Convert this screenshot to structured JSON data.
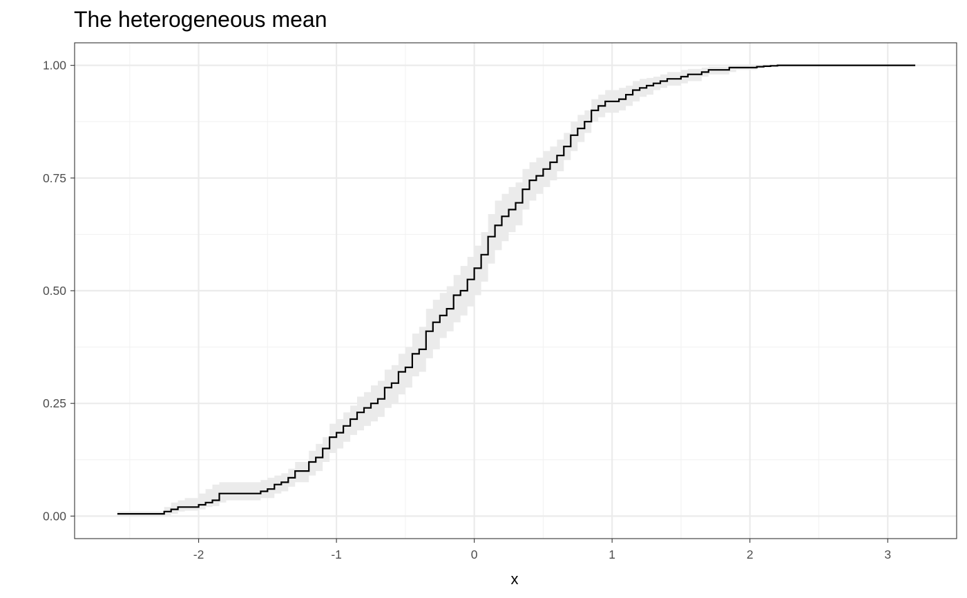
{
  "chart_data": {
    "type": "line",
    "title": "The heterogeneous mean",
    "xlabel": "x",
    "ylabel": "",
    "xlim": [
      -2.9,
      3.5
    ],
    "ylim": [
      -0.05,
      1.05
    ],
    "x_ticks": [
      -2,
      -1,
      0,
      1,
      2,
      3
    ],
    "x_tick_labels": [
      "-2",
      "-1",
      "0",
      "1",
      "2",
      "3"
    ],
    "y_ticks": [
      0,
      0.25,
      0.5,
      0.75,
      1
    ],
    "y_tick_labels": [
      "0.00",
      "0.25",
      "0.50",
      "0.75",
      "1.00"
    ],
    "grid": true,
    "style": "step",
    "colors": {
      "line": "#000000",
      "ribbon": "#ebebeb",
      "grid_major": "#ebebeb",
      "grid_minor": "#f2f2f2",
      "panel_border": "#333333"
    },
    "series": [
      {
        "x": [
          -2.59,
          -2.25,
          -2.2,
          -2.15,
          -2.1,
          -2.0,
          -1.95,
          -1.9,
          -1.85,
          -1.8,
          -1.65,
          -1.55,
          -1.5,
          -1.45,
          -1.4,
          -1.35,
          -1.3,
          -1.2,
          -1.15,
          -1.1,
          -1.05,
          -1.0,
          -0.95,
          -0.9,
          -0.85,
          -0.8,
          -0.75,
          -0.7,
          -0.65,
          -0.6,
          -0.55,
          -0.5,
          -0.45,
          -0.4,
          -0.35,
          -0.3,
          -0.25,
          -0.2,
          -0.15,
          -0.1,
          -0.05,
          0.0,
          0.05,
          0.1,
          0.15,
          0.2,
          0.25,
          0.3,
          0.35,
          0.4,
          0.45,
          0.5,
          0.55,
          0.6,
          0.65,
          0.7,
          0.75,
          0.8,
          0.85,
          0.9,
          0.95,
          1.05,
          1.1,
          1.15,
          1.2,
          1.25,
          1.3,
          1.35,
          1.4,
          1.5,
          1.55,
          1.65,
          1.7,
          1.85,
          1.9,
          1.95,
          2.0,
          2.05,
          2.1,
          2.15,
          2.2,
          2.3,
          2.35,
          2.4,
          2.45,
          2.5,
          2.7,
          2.75,
          3.2
        ],
        "y": [
          0.005,
          0.01,
          0.015,
          0.02,
          0.02,
          0.025,
          0.03,
          0.035,
          0.05,
          0.05,
          0.05,
          0.055,
          0.06,
          0.07,
          0.075,
          0.085,
          0.1,
          0.12,
          0.13,
          0.15,
          0.175,
          0.185,
          0.2,
          0.215,
          0.23,
          0.24,
          0.25,
          0.26,
          0.285,
          0.295,
          0.32,
          0.33,
          0.36,
          0.37,
          0.41,
          0.43,
          0.445,
          0.46,
          0.49,
          0.5,
          0.525,
          0.55,
          0.58,
          0.62,
          0.645,
          0.665,
          0.68,
          0.695,
          0.725,
          0.745,
          0.755,
          0.77,
          0.785,
          0.8,
          0.82,
          0.845,
          0.86,
          0.875,
          0.9,
          0.91,
          0.92,
          0.925,
          0.935,
          0.945,
          0.95,
          0.955,
          0.96,
          0.965,
          0.97,
          0.975,
          0.98,
          0.985,
          0.99,
          0.995,
          0.995,
          0.995,
          0.995,
          0.997,
          0.998,
          0.999,
          1.0,
          1.0,
          1.0,
          1.0,
          1.0,
          1.0,
          1.0,
          1.0,
          1.0
        ],
        "lower": [
          0.0,
          0.0,
          0.005,
          0.01,
          0.012,
          0.015,
          0.02,
          0.022,
          0.03,
          0.035,
          0.035,
          0.04,
          0.04,
          0.05,
          0.055,
          0.065,
          0.075,
          0.09,
          0.1,
          0.12,
          0.14,
          0.15,
          0.165,
          0.18,
          0.19,
          0.2,
          0.21,
          0.22,
          0.24,
          0.25,
          0.27,
          0.285,
          0.31,
          0.32,
          0.35,
          0.37,
          0.395,
          0.41,
          0.43,
          0.445,
          0.465,
          0.49,
          0.52,
          0.56,
          0.59,
          0.61,
          0.63,
          0.645,
          0.68,
          0.7,
          0.715,
          0.73,
          0.745,
          0.765,
          0.79,
          0.81,
          0.83,
          0.85,
          0.875,
          0.885,
          0.895,
          0.9,
          0.91,
          0.92,
          0.93,
          0.935,
          0.945,
          0.95,
          0.955,
          0.96,
          0.965,
          0.975,
          0.98,
          0.985,
          0.99,
          0.99,
          0.99,
          0.995,
          0.996,
          0.997,
          0.998,
          0.998,
          0.998,
          0.998,
          0.998,
          0.998,
          0.998,
          0.998,
          0.998
        ],
        "upper": [
          0.01,
          0.02,
          0.03,
          0.035,
          0.04,
          0.05,
          0.06,
          0.07,
          0.075,
          0.075,
          0.075,
          0.08,
          0.085,
          0.09,
          0.095,
          0.105,
          0.12,
          0.145,
          0.16,
          0.175,
          0.205,
          0.215,
          0.23,
          0.245,
          0.265,
          0.275,
          0.29,
          0.3,
          0.325,
          0.335,
          0.36,
          0.375,
          0.405,
          0.42,
          0.46,
          0.48,
          0.495,
          0.51,
          0.535,
          0.555,
          0.575,
          0.6,
          0.63,
          0.67,
          0.7,
          0.715,
          0.73,
          0.74,
          0.77,
          0.785,
          0.795,
          0.81,
          0.82,
          0.835,
          0.85,
          0.875,
          0.89,
          0.9,
          0.925,
          0.935,
          0.945,
          0.95,
          0.955,
          0.965,
          0.97,
          0.972,
          0.975,
          0.98,
          0.985,
          0.99,
          0.992,
          0.995,
          0.997,
          0.998,
          1.0,
          1.0,
          1.0,
          1.0,
          1.0,
          1.0,
          1.0,
          1.0,
          1.0,
          1.0,
          1.0,
          1.0,
          1.0,
          1.0,
          1.0
        ]
      }
    ]
  }
}
